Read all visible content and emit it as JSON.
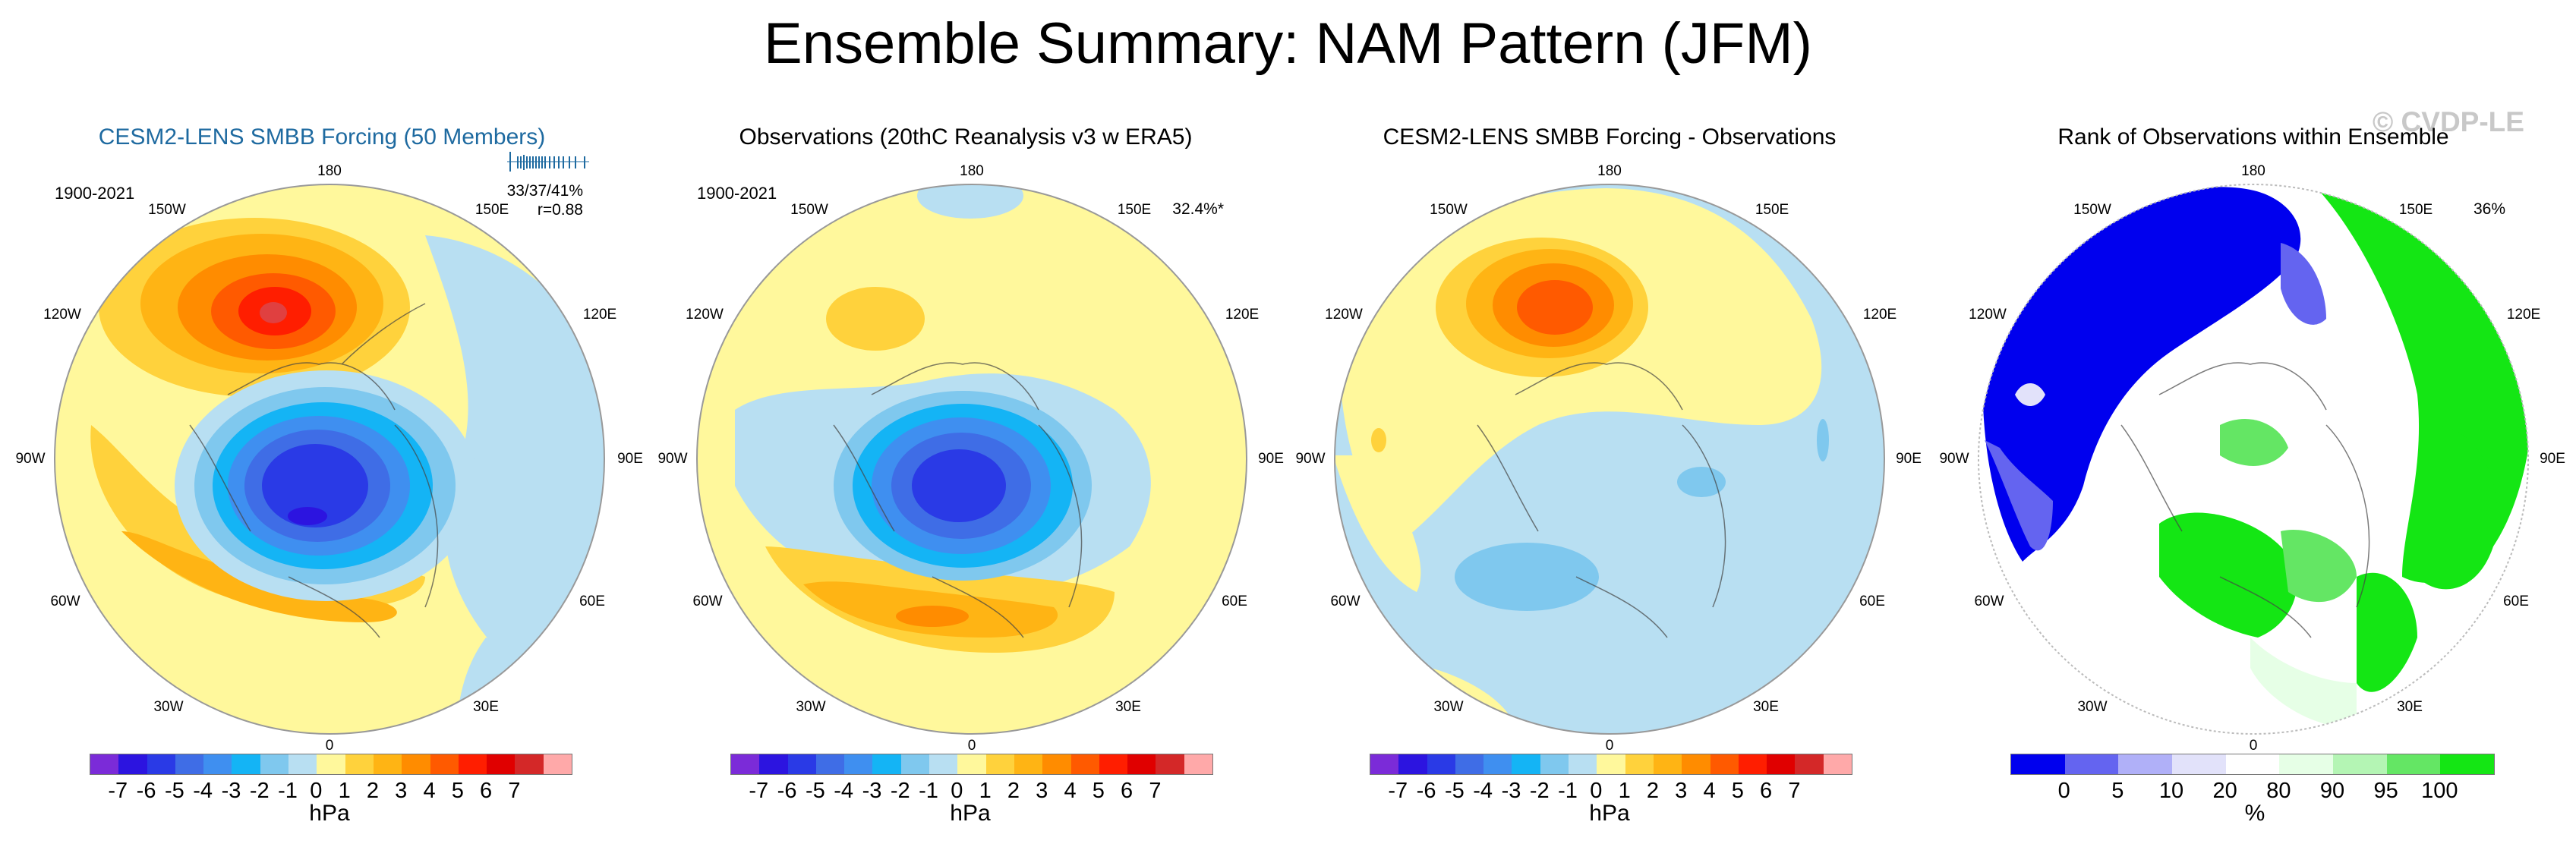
{
  "title": "Ensemble Summary: NAM Pattern (JFM)",
  "watermark": "© CVDP-LE",
  "colors": {
    "bar_ens": [
      "#7b2bd8",
      "#2c14e0",
      "#2a3ae6",
      "#3f6de6",
      "#3f8ff0",
      "#14b4f5",
      "#7fc8ee",
      "#b8dff2",
      "#fff89c",
      "#ffd23c",
      "#ffb414",
      "#ff8c00",
      "#ff5a00",
      "#ff1e00",
      "#e00000",
      "#d42828",
      "#ffa9a9"
    ],
    "bar_rank": [
      "#0000ee",
      "#6464f0",
      "#b0b0f8",
      "#e2e2fa",
      "#ffffff",
      "#e6ffe6",
      "#b4f5b4",
      "#64e664",
      "#14e614"
    ]
  },
  "panels": [
    {
      "id": "ensemble",
      "title": "CESM2-LENS SMBB Forcing (50 Members)",
      "period": "1900-2021",
      "stats_line1": "33/37/41%",
      "stats_line2": "r=0.88",
      "lon_labels": [
        "180",
        "150W",
        "150E",
        "120W",
        "120E",
        "90W",
        "90E",
        "60W",
        "60E",
        "30W",
        "30E",
        "0"
      ],
      "ticks": [
        "-7",
        "-6",
        "-5",
        "-4",
        "-3",
        "-2",
        "-1",
        "0",
        "1",
        "2",
        "3",
        "4",
        "5",
        "6",
        "7"
      ],
      "unit": "hPa"
    },
    {
      "id": "observations",
      "title": "Observations (20thC Reanalysis v3 w ERA5)",
      "period": "1900-2021",
      "pct": "32.4%*",
      "lon_labels": [
        "180",
        "150W",
        "150E",
        "120W",
        "120E",
        "90W",
        "90E",
        "60W",
        "60E",
        "30W",
        "30E",
        "0"
      ],
      "ticks": [
        "-7",
        "-6",
        "-5",
        "-4",
        "-3",
        "-2",
        "-1",
        "0",
        "1",
        "2",
        "3",
        "4",
        "5",
        "6",
        "7"
      ],
      "unit": "hPa"
    },
    {
      "id": "difference",
      "title": "CESM2-LENS SMBB Forcing - Observations",
      "lon_labels": [
        "180",
        "150W",
        "150E",
        "120W",
        "120E",
        "90W",
        "90E",
        "60W",
        "60E",
        "30W",
        "30E",
        "0"
      ],
      "ticks": [
        "-7",
        "-6",
        "-5",
        "-4",
        "-3",
        "-2",
        "-1",
        "0",
        "1",
        "2",
        "3",
        "4",
        "5",
        "6",
        "7"
      ],
      "unit": "hPa"
    },
    {
      "id": "rank",
      "title": "Rank of Observations within Ensemble",
      "pct": "36%",
      "lon_labels": [
        "180",
        "150W",
        "150E",
        "120W",
        "120E",
        "90W",
        "90E",
        "60W",
        "60E",
        "30W",
        "30E",
        "0"
      ],
      "ticks": [
        "0",
        "5",
        "10",
        "20",
        "80",
        "90",
        "95",
        "100"
      ],
      "unit": "%"
    }
  ]
}
